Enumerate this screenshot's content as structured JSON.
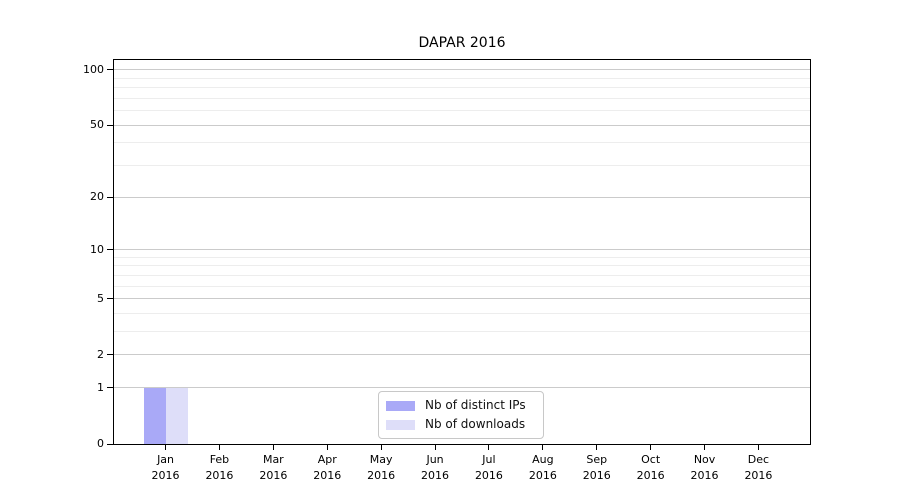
{
  "chart_data": {
    "type": "bar",
    "title": "DAPAR 2016",
    "categories": [
      "Jan",
      "Feb",
      "Mar",
      "Apr",
      "May",
      "Jun",
      "Jul",
      "Aug",
      "Sep",
      "Oct",
      "Nov",
      "Dec"
    ],
    "category_year": "2016",
    "series": [
      {
        "name": "Nb of distinct IPs",
        "color": "#a9a9f7",
        "values": [
          1,
          0,
          0,
          0,
          0,
          0,
          0,
          0,
          0,
          0,
          0,
          0
        ]
      },
      {
        "name": "Nb of downloads",
        "color": "#dedef9",
        "values": [
          1,
          0,
          0,
          0,
          0,
          0,
          0,
          0,
          0,
          0,
          0,
          0
        ]
      }
    ],
    "y_axis": {
      "scale": "log10(1+v)",
      "ylim": [
        0,
        113
      ],
      "major_ticks": [
        0,
        1,
        2,
        5,
        10,
        20,
        50,
        100
      ],
      "minor_gridlines": [
        3,
        4,
        6,
        7,
        8,
        9,
        30,
        40,
        60,
        70,
        80,
        90
      ]
    },
    "x_axis": {
      "gridlines": false
    },
    "legend": {
      "position": "bottom-center"
    }
  },
  "colors": {
    "bar_distinct_ips": "#a9a9f7",
    "bar_downloads": "#dedef9",
    "grid_major": "#cbcbcb",
    "grid_minor": "#ededed",
    "axis": "#000000",
    "legend_border": "#c8c8c8",
    "text": "#000000"
  }
}
